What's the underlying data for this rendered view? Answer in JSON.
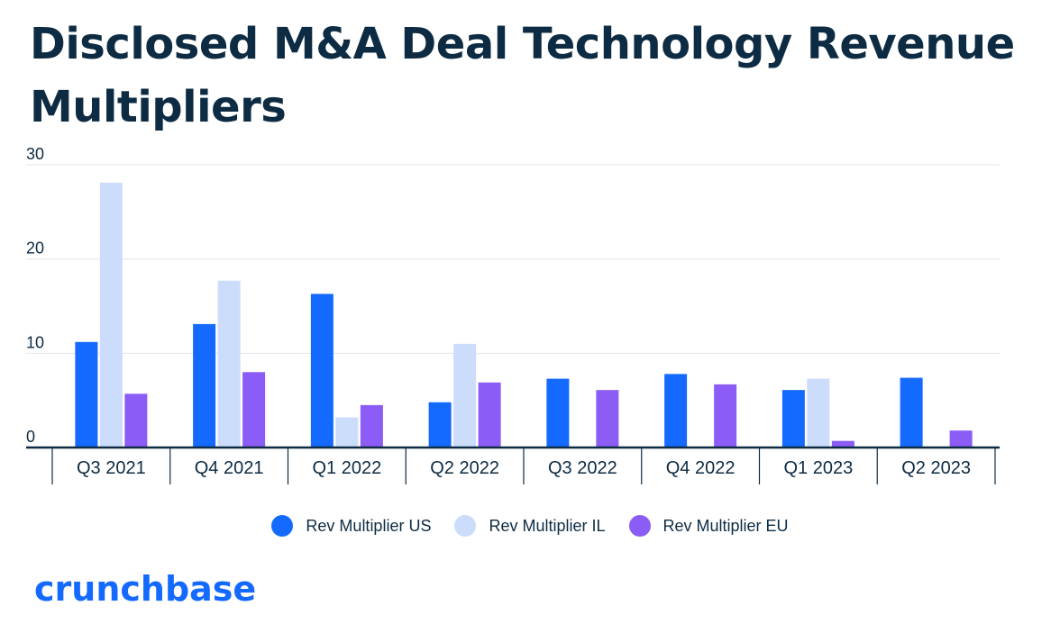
{
  "title": "Disclosed M&A Deal Technology Revenue Multipliers",
  "logo_text": "crunchbase",
  "colors": {
    "us": "#146aff",
    "il": "#ccdcfb",
    "eu": "#8b5cf6",
    "title": "#0d2b42"
  },
  "chart_data": {
    "type": "bar",
    "categories": [
      "Q3 2021",
      "Q4 2021",
      "Q1 2022",
      "Q2 2022",
      "Q3 2022",
      "Q4 2022",
      "Q1 2023",
      "Q2 2023"
    ],
    "series": [
      {
        "name": "Rev Multiplier US",
        "color": "#146aff",
        "values": [
          11.2,
          13.1,
          16.3,
          4.8,
          7.3,
          7.8,
          6.1,
          7.4
        ]
      },
      {
        "name": "Rev Multiplier IL",
        "color": "#ccdcfb",
        "values": [
          28.1,
          17.7,
          3.2,
          11.0,
          null,
          null,
          7.3,
          null
        ]
      },
      {
        "name": "Rev Multiplier EU",
        "color": "#8b5cf6",
        "values": [
          5.7,
          8.0,
          4.5,
          6.9,
          6.1,
          6.7,
          0.7,
          1.8
        ]
      }
    ],
    "yticks": [
      0,
      10,
      20,
      30
    ],
    "ylim": [
      0,
      30
    ],
    "grid": true,
    "legend_position": "bottom-center"
  }
}
